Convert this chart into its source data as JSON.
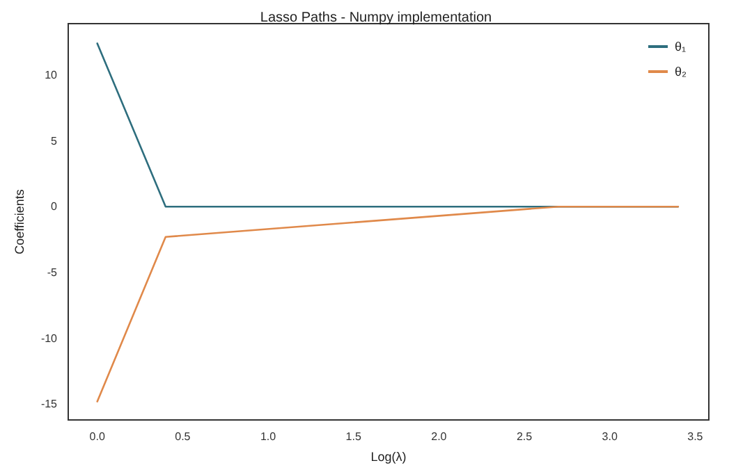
{
  "chart_data": {
    "type": "line",
    "title": "Lasso Paths - Numpy implementation",
    "xlabel": "Log(λ)",
    "ylabel": "Coefficients",
    "series": [
      {
        "name": "θ₁",
        "color": "#2e6e7e",
        "x": [
          0,
          0.4,
          2.7,
          3.4
        ],
        "values": [
          12.4,
          0,
          0,
          0
        ]
      },
      {
        "name": "θ₂",
        "color": "#e0894a",
        "x": [
          0,
          0.4,
          2.7,
          3.4
        ],
        "values": [
          -14.8,
          -2.3,
          0,
          0
        ]
      }
    ],
    "xlim": [
      -0.17,
      3.58
    ],
    "ylim": [
      -16.2,
      13.9
    ],
    "xticks": [
      {
        "value": 0,
        "label": "0.0"
      },
      {
        "value": 0.5,
        "label": "0.5"
      },
      {
        "value": 1,
        "label": "1.0"
      },
      {
        "value": 1.5,
        "label": "1.5"
      },
      {
        "value": 2,
        "label": "2.0"
      },
      {
        "value": 2.5,
        "label": "2.5"
      },
      {
        "value": 3,
        "label": "3.0"
      },
      {
        "value": 3.5,
        "label": "3.5"
      }
    ],
    "yticks": [
      -15,
      -10,
      -5,
      0,
      5,
      10
    ],
    "grid": false,
    "legend": "top right",
    "marker": "none",
    "line_style": "solid"
  }
}
